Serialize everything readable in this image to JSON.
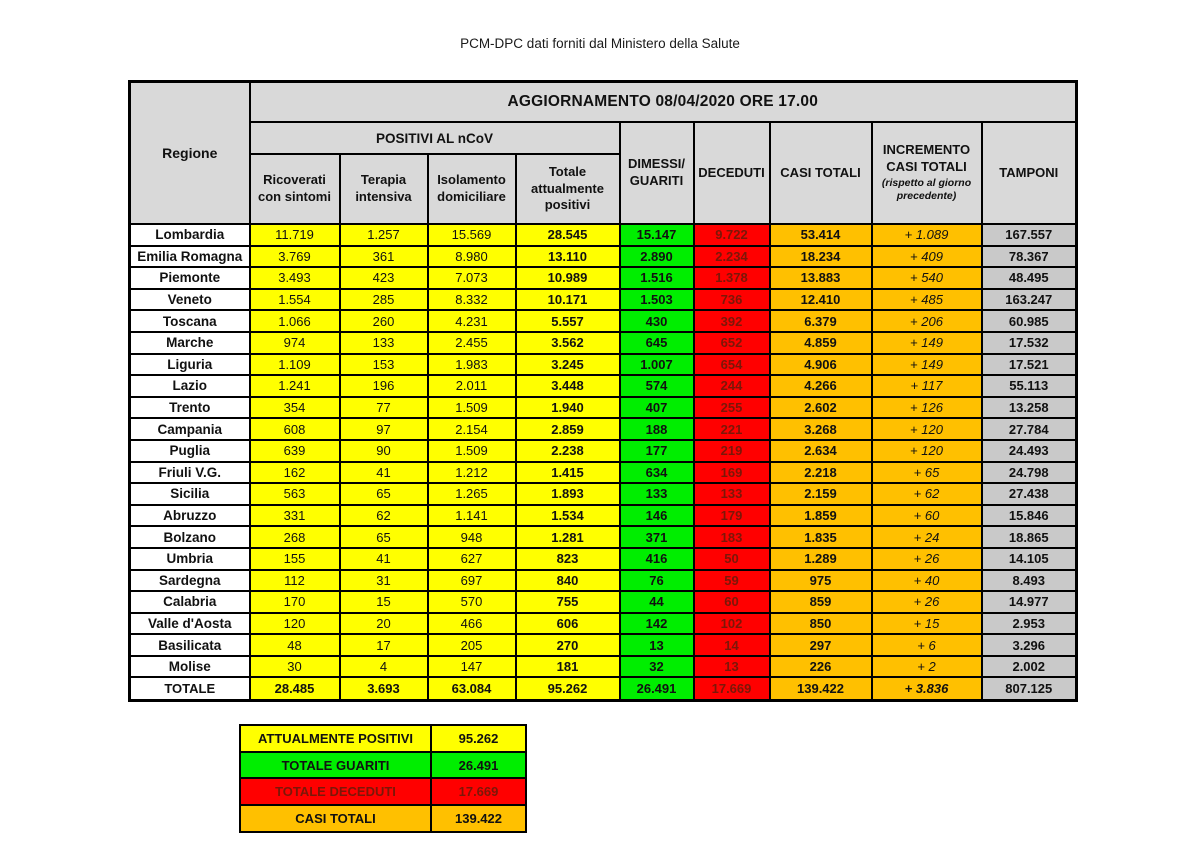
{
  "page_title": "PCM-DPC dati forniti dal Ministero della Salute",
  "colors": {
    "yellow": "#FFFF00",
    "green": "#00EE00",
    "red": "#FF0000",
    "orange": "#FFC000",
    "gray_head": "#D9D9D9",
    "gray_cell": "#C9C9C9",
    "dark_red_text": "#7B1708"
  },
  "chart_data": {
    "type": "table",
    "title": "AGGIORNAMENTO 08/04/2020 ORE 17.00",
    "region_header": "Regione",
    "group_header": "POSITIVI AL nCoV",
    "columns": {
      "ricoverati": "Ricoverati con sintomi",
      "terapia": "Terapia intensiva",
      "isolamento": "Isolamento domiciliare",
      "totale_positivi": "Totale attualmente positivi",
      "dimessi": "DIMESSI/ GUARITI",
      "deceduti": "DECEDUTI",
      "casi_totali": "CASI TOTALI",
      "incremento_line1": "INCREMENTO",
      "incremento_line2": "CASI TOTALI",
      "incremento_note": "(rispetto al giorno precedente)",
      "tamponi": "TAMPONI"
    },
    "rows": [
      {
        "region": "Lombardia",
        "ricoverati": "11.719",
        "terapia": "1.257",
        "isolamento": "15.569",
        "totale_positivi": "28.545",
        "dimessi": "15.147",
        "deceduti": "9.722",
        "casi_totali": "53.414",
        "incremento": "+ 1.089",
        "tamponi": "167.557"
      },
      {
        "region": "Emilia Romagna",
        "ricoverati": "3.769",
        "terapia": "361",
        "isolamento": "8.980",
        "totale_positivi": "13.110",
        "dimessi": "2.890",
        "deceduti": "2.234",
        "casi_totali": "18.234",
        "incremento": "+ 409",
        "tamponi": "78.367"
      },
      {
        "region": "Piemonte",
        "ricoverati": "3.493",
        "terapia": "423",
        "isolamento": "7.073",
        "totale_positivi": "10.989",
        "dimessi": "1.516",
        "deceduti": "1.378",
        "casi_totali": "13.883",
        "incremento": "+ 540",
        "tamponi": "48.495"
      },
      {
        "region": "Veneto",
        "ricoverati": "1.554",
        "terapia": "285",
        "isolamento": "8.332",
        "totale_positivi": "10.171",
        "dimessi": "1.503",
        "deceduti": "736",
        "casi_totali": "12.410",
        "incremento": "+ 485",
        "tamponi": "163.247"
      },
      {
        "region": "Toscana",
        "ricoverati": "1.066",
        "terapia": "260",
        "isolamento": "4.231",
        "totale_positivi": "5.557",
        "dimessi": "430",
        "deceduti": "392",
        "casi_totali": "6.379",
        "incremento": "+ 206",
        "tamponi": "60.985"
      },
      {
        "region": "Marche",
        "ricoverati": "974",
        "terapia": "133",
        "isolamento": "2.455",
        "totale_positivi": "3.562",
        "dimessi": "645",
        "deceduti": "652",
        "casi_totali": "4.859",
        "incremento": "+ 149",
        "tamponi": "17.532"
      },
      {
        "region": "Liguria",
        "ricoverati": "1.109",
        "terapia": "153",
        "isolamento": "1.983",
        "totale_positivi": "3.245",
        "dimessi": "1.007",
        "deceduti": "654",
        "casi_totali": "4.906",
        "incremento": "+ 149",
        "tamponi": "17.521"
      },
      {
        "region": "Lazio",
        "ricoverati": "1.241",
        "terapia": "196",
        "isolamento": "2.011",
        "totale_positivi": "3.448",
        "dimessi": "574",
        "deceduti": "244",
        "casi_totali": "4.266",
        "incremento": "+ 117",
        "tamponi": "55.113"
      },
      {
        "region": "Trento",
        "ricoverati": "354",
        "terapia": "77",
        "isolamento": "1.509",
        "totale_positivi": "1.940",
        "dimessi": "407",
        "deceduti": "255",
        "casi_totali": "2.602",
        "incremento": "+ 126",
        "tamponi": "13.258"
      },
      {
        "region": "Campania",
        "ricoverati": "608",
        "terapia": "97",
        "isolamento": "2.154",
        "totale_positivi": "2.859",
        "dimessi": "188",
        "deceduti": "221",
        "casi_totali": "3.268",
        "incremento": "+ 120",
        "tamponi": "27.784"
      },
      {
        "region": "Puglia",
        "ricoverati": "639",
        "terapia": "90",
        "isolamento": "1.509",
        "totale_positivi": "2.238",
        "dimessi": "177",
        "deceduti": "219",
        "casi_totali": "2.634",
        "incremento": "+ 120",
        "tamponi": "24.493"
      },
      {
        "region": "Friuli V.G.",
        "ricoverati": "162",
        "terapia": "41",
        "isolamento": "1.212",
        "totale_positivi": "1.415",
        "dimessi": "634",
        "deceduti": "169",
        "casi_totali": "2.218",
        "incremento": "+ 65",
        "tamponi": "24.798"
      },
      {
        "region": "Sicilia",
        "ricoverati": "563",
        "terapia": "65",
        "isolamento": "1.265",
        "totale_positivi": "1.893",
        "dimessi": "133",
        "deceduti": "133",
        "casi_totali": "2.159",
        "incremento": "+ 62",
        "tamponi": "27.438"
      },
      {
        "region": "Abruzzo",
        "ricoverati": "331",
        "terapia": "62",
        "isolamento": "1.141",
        "totale_positivi": "1.534",
        "dimessi": "146",
        "deceduti": "179",
        "casi_totali": "1.859",
        "incremento": "+ 60",
        "tamponi": "15.846"
      },
      {
        "region": "Bolzano",
        "ricoverati": "268",
        "terapia": "65",
        "isolamento": "948",
        "totale_positivi": "1.281",
        "dimessi": "371",
        "deceduti": "183",
        "casi_totali": "1.835",
        "incremento": "+ 24",
        "tamponi": "18.865"
      },
      {
        "region": "Umbria",
        "ricoverati": "155",
        "terapia": "41",
        "isolamento": "627",
        "totale_positivi": "823",
        "dimessi": "416",
        "deceduti": "50",
        "casi_totali": "1.289",
        "incremento": "+ 26",
        "tamponi": "14.105"
      },
      {
        "region": "Sardegna",
        "ricoverati": "112",
        "terapia": "31",
        "isolamento": "697",
        "totale_positivi": "840",
        "dimessi": "76",
        "deceduti": "59",
        "casi_totali": "975",
        "incremento": "+ 40",
        "tamponi": "8.493"
      },
      {
        "region": "Calabria",
        "ricoverati": "170",
        "terapia": "15",
        "isolamento": "570",
        "totale_positivi": "755",
        "dimessi": "44",
        "deceduti": "60",
        "casi_totali": "859",
        "incremento": "+ 26",
        "tamponi": "14.977"
      },
      {
        "region": "Valle d'Aosta",
        "ricoverati": "120",
        "terapia": "20",
        "isolamento": "466",
        "totale_positivi": "606",
        "dimessi": "142",
        "deceduti": "102",
        "casi_totali": "850",
        "incremento": "+ 15",
        "tamponi": "2.953"
      },
      {
        "region": "Basilicata",
        "ricoverati": "48",
        "terapia": "17",
        "isolamento": "205",
        "totale_positivi": "270",
        "dimessi": "13",
        "deceduti": "14",
        "casi_totali": "297",
        "incremento": "+ 6",
        "tamponi": "3.296"
      },
      {
        "region": "Molise",
        "ricoverati": "30",
        "terapia": "4",
        "isolamento": "147",
        "totale_positivi": "181",
        "dimessi": "32",
        "deceduti": "13",
        "casi_totali": "226",
        "incremento": "+ 2",
        "tamponi": "2.002"
      }
    ],
    "total_row": {
      "region": "TOTALE",
      "ricoverati": "28.485",
      "terapia": "3.693",
      "isolamento": "63.084",
      "totale_positivi": "95.262",
      "dimessi": "26.491",
      "deceduti": "17.669",
      "casi_totali": "139.422",
      "incremento": "+ 3.836",
      "tamponi": "807.125"
    }
  },
  "legend": {
    "rows": [
      {
        "label": "ATTUALMENTE POSITIVI",
        "value": "95.262",
        "color": "yellow"
      },
      {
        "label": "TOTALE GUARITI",
        "value": "26.491",
        "color": "green"
      },
      {
        "label": "TOTALE DECEDUTI",
        "value": "17.669",
        "color": "red"
      },
      {
        "label": "CASI TOTALI",
        "value": "139.422",
        "color": "orange"
      }
    ]
  }
}
